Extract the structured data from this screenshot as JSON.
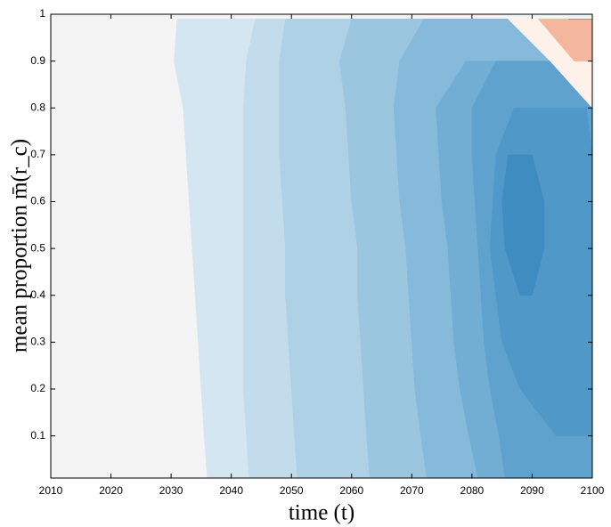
{
  "chart_data": {
    "type": "contour",
    "xlabel": "time (t)",
    "ylabel": "mean proportion m̄(r_c)",
    "xlim": [
      2010,
      2100
    ],
    "ylim": [
      0.01,
      1
    ],
    "xticks": [
      2010,
      2020,
      2030,
      2040,
      2050,
      2060,
      2070,
      2080,
      2090,
      2100
    ],
    "yticks": [
      0.1,
      0.2,
      0.3,
      0.4,
      0.5,
      0.6,
      0.7,
      0.8,
      0.9,
      1
    ],
    "background": "#f4f4f4",
    "y": [
      0.01,
      0.1,
      0.2,
      0.3,
      0.4,
      0.5,
      0.6,
      0.7,
      0.8,
      0.9,
      0.99
    ],
    "series": [
      {
        "color": "#d4e6f1",
        "x_left": [
          2036,
          2035.5,
          2035,
          2034.5,
          2034,
          2033.5,
          2033,
          2032.5,
          2032,
          2030.5,
          2031
        ],
        "x_right": [
          2100,
          2100,
          2100,
          2100,
          2100,
          2100,
          2100,
          2100,
          2100,
          2100,
          2100
        ]
      },
      {
        "color": "#c2dcec",
        "x_left": [
          2043,
          2042.5,
          2042,
          2042,
          2042,
          2042,
          2042,
          2042,
          2042,
          2042.5,
          2044
        ],
        "x_right": [
          2100,
          2100,
          2100,
          2100,
          2100,
          2100,
          2100,
          2100,
          2100,
          2100,
          2100
        ]
      },
      {
        "color": "#aed1e6",
        "x_left": [
          2051,
          2050.5,
          2050,
          2049.5,
          2049,
          2049,
          2048.5,
          2048,
          2048,
          2048,
          2049
        ],
        "x_right": [
          2100,
          2100,
          2100,
          2100,
          2100,
          2100,
          2100,
          2100,
          2100,
          2100,
          2100
        ]
      },
      {
        "color": "#9ac6e0",
        "x_left": [
          2063,
          2062.5,
          2062,
          2061.5,
          2061,
          2061,
          2060,
          2059.5,
          2059,
          2058,
          2060
        ],
        "x_right": [
          2100,
          2100,
          2100,
          2100,
          2100,
          2100,
          2100,
          2100,
          2100,
          2100,
          2100
        ]
      },
      {
        "color": "#86bada",
        "x_left": [
          2072.5,
          2071.5,
          2070.5,
          2070,
          2069.5,
          2069,
          2068,
          2067.5,
          2067,
          2068,
          2072
        ],
        "x_right": [
          2100,
          2100,
          2100,
          2100,
          2100,
          2100,
          2100,
          2100,
          2100,
          2100,
          2100
        ]
      },
      {
        "color": "#72aed3",
        "x_left": [
          2081,
          2079.5,
          2078,
          2077,
          2076.5,
          2076,
          2075,
          2074.5,
          2074,
          2079,
          null
        ],
        "x_right": [
          2100,
          2100,
          2100,
          2100,
          2100,
          2100,
          2100,
          2100,
          2100,
          2100,
          null
        ]
      },
      {
        "color": "#5fa2cd",
        "x_left": [
          2085.5,
          2084.5,
          2083,
          2082,
          2081.5,
          2081,
          2080.5,
          2080,
          2080,
          2084,
          null
        ],
        "x_right": [
          2100,
          2100,
          2100,
          2100,
          2100,
          2100,
          2100,
          2100,
          2100,
          2100,
          null
        ]
      },
      {
        "color": "#4f98c7",
        "x_left": [
          null,
          2094,
          2088,
          2085,
          2084,
          2083,
          2083.5,
          2084,
          2087,
          null,
          null
        ],
        "x_right": [
          null,
          2100,
          2100,
          2100,
          2100,
          2100,
          2100,
          2100,
          2099,
          null,
          null
        ]
      },
      {
        "color": "#3f8cc0",
        "x_left": [
          null,
          null,
          null,
          null,
          2088,
          2085.5,
          2085,
          2086,
          null,
          null,
          null
        ],
        "x_right": [
          null,
          null,
          null,
          null,
          2090,
          2092,
          2092,
          2090,
          null,
          null,
          null
        ]
      },
      {
        "color": "#fdf1ea",
        "x_left": [
          null,
          null,
          null,
          null,
          null,
          null,
          null,
          null,
          2100,
          2093,
          2086
        ],
        "x_right": [
          null,
          null,
          null,
          null,
          null,
          null,
          null,
          null,
          2100,
          2100,
          2100
        ]
      },
      {
        "color": "#f4b79e",
        "x_left": [
          null,
          null,
          null,
          null,
          null,
          null,
          null,
          null,
          null,
          2097,
          2091
        ],
        "x_right": [
          null,
          null,
          null,
          null,
          null,
          null,
          null,
          null,
          null,
          2100,
          2100
        ]
      },
      {
        "color": "#c8483d",
        "x_left": [
          null,
          null,
          null,
          null,
          null,
          null,
          null,
          null,
          null,
          null,
          2096
        ],
        "x_right": [
          null,
          null,
          null,
          null,
          null,
          null,
          null,
          null,
          null,
          null,
          2100
        ]
      }
    ]
  }
}
